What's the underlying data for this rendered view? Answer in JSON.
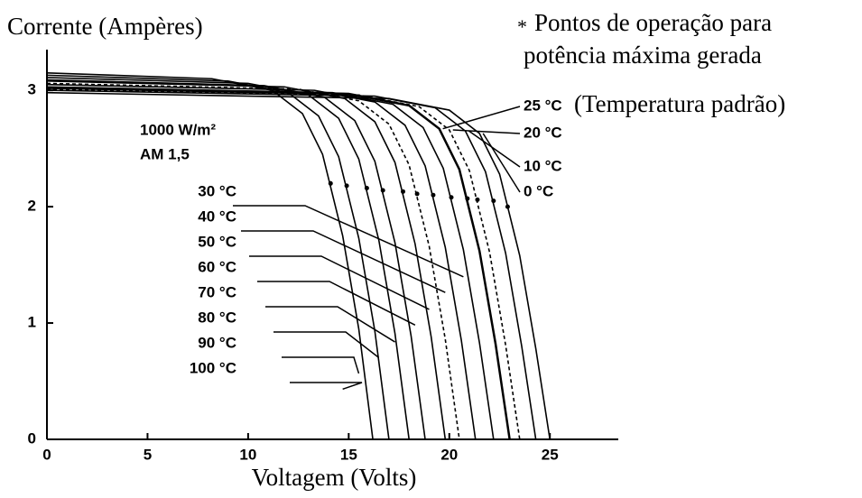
{
  "chart_data": {
    "type": "line",
    "x_label": "Voltagem (Volts)",
    "y_label": "Corrente (Ampères)",
    "annotations": [
      "1000 W/m²",
      "AM 1,5"
    ],
    "standard_note": "(Temperatura padrão)",
    "legend_symbol": "*",
    "legend_note": [
      "Pontos de operação para",
      "potência máxima gerada"
    ],
    "xlim": [
      0,
      28.4
    ],
    "ylim": [
      0,
      3.35
    ],
    "xticks": [
      0,
      5,
      10,
      15,
      20,
      25
    ],
    "yticks": [
      0,
      1,
      2,
      3
    ],
    "color": "#000000",
    "series": [
      {
        "name": "0 °C",
        "x": [
          0,
          17,
          20,
          21.5,
          22.5,
          23.5,
          24.3,
          25
        ],
        "values": [
          2.98,
          2.93,
          2.83,
          2.63,
          2.28,
          1.58,
          0.78,
          0
        ]
      },
      {
        "name": "10 °C",
        "x": [
          0,
          16.3,
          19.3,
          20.8,
          21.8,
          22.8,
          23.6,
          24.3
        ],
        "values": [
          3.0,
          2.95,
          2.85,
          2.65,
          2.3,
          1.6,
          0.8,
          0
        ]
      },
      {
        "name": "20 °C",
        "x": [
          0,
          15.5,
          18.5,
          20,
          21,
          22,
          22.8,
          23.5
        ],
        "values": [
          3.01,
          2.96,
          2.86,
          2.66,
          2.31,
          1.61,
          0.81,
          0
        ]
      },
      {
        "name": "25 °C",
        "x": [
          0,
          15,
          18,
          19.5,
          20.5,
          21.5,
          22.3,
          23
        ],
        "values": [
          3.02,
          2.97,
          2.87,
          2.67,
          2.32,
          1.62,
          0.82,
          0
        ]
      },
      {
        "name": "30 °C",
        "x": [
          0,
          14.2,
          17.2,
          18.7,
          19.7,
          20.7,
          21.5,
          22.2
        ],
        "values": [
          3.03,
          2.98,
          2.88,
          2.68,
          2.33,
          1.63,
          0.83,
          0
        ]
      },
      {
        "name": "40 °C",
        "x": [
          0,
          13.3,
          16.3,
          17.8,
          18.8,
          19.8,
          20.6,
          21.3
        ],
        "values": [
          3.05,
          3.0,
          2.9,
          2.7,
          2.35,
          1.65,
          0.85,
          0
        ]
      },
      {
        "name": "50 °C",
        "x": [
          0,
          12.5,
          15.5,
          17,
          18,
          19,
          19.8,
          20.5
        ],
        "values": [
          3.06,
          3.01,
          2.91,
          2.71,
          2.36,
          1.66,
          0.86,
          0
        ]
      },
      {
        "name": "60 °C",
        "x": [
          0,
          11.8,
          14.8,
          16.3,
          17.3,
          18.3,
          19.1,
          19.8
        ],
        "values": [
          3.08,
          3.03,
          2.93,
          2.73,
          2.38,
          1.68,
          0.88,
          0
        ]
      },
      {
        "name": "70 °C",
        "x": [
          0,
          10.8,
          13.8,
          15.3,
          16.3,
          17.3,
          18.1,
          18.8
        ],
        "values": [
          3.09,
          3.04,
          2.94,
          2.74,
          2.39,
          1.69,
          0.89,
          0
        ]
      },
      {
        "name": "80 °C",
        "x": [
          0,
          10,
          13,
          14.5,
          15.5,
          16.5,
          17.3,
          18
        ],
        "values": [
          3.11,
          3.06,
          2.96,
          2.76,
          2.41,
          1.71,
          0.91,
          0
        ]
      },
      {
        "name": "90 °C",
        "x": [
          0,
          9,
          12,
          13.5,
          14.5,
          15.5,
          16.3,
          17
        ],
        "values": [
          3.13,
          3.08,
          2.98,
          2.78,
          2.43,
          1.73,
          0.93,
          0
        ]
      },
      {
        "name": "100 °C",
        "x": [
          0,
          8.2,
          11.2,
          12.7,
          13.7,
          14.7,
          15.5,
          16.2
        ],
        "values": [
          3.15,
          3.1,
          3.0,
          2.8,
          2.45,
          1.75,
          0.95,
          0
        ]
      }
    ],
    "max_power_points": {
      "x": [
        22.9,
        22.2,
        21.4,
        20.9,
        20.1,
        19.2,
        18.4,
        17.7,
        16.7,
        15.9,
        14.9,
        14.1
      ],
      "y": [
        2.0,
        2.05,
        2.06,
        2.07,
        2.08,
        2.1,
        2.11,
        2.13,
        2.14,
        2.16,
        2.18,
        2.2
      ]
    }
  }
}
